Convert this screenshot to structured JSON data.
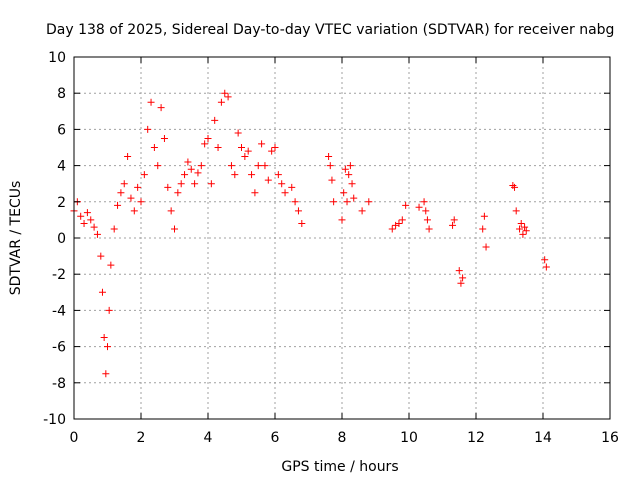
{
  "chart_data": {
    "type": "scatter",
    "title": "Day 138 of 2025, Sidereal Day-to-day VTEC variation (SDTVAR) for receiver nabg",
    "xlabel": "GPS time / hours",
    "ylabel": "SDTVAR / TECUs",
    "xlim": [
      0,
      16
    ],
    "ylim": [
      -10,
      10
    ],
    "x_ticks": [
      0,
      2,
      4,
      6,
      8,
      10,
      12,
      14,
      16
    ],
    "y_ticks": [
      -10,
      -8,
      -6,
      -4,
      -2,
      0,
      2,
      4,
      6,
      8,
      10
    ],
    "x_tick_labels": [
      "0",
      "2",
      "4",
      "6",
      "8",
      "10",
      "12",
      "14",
      "16"
    ],
    "y_tick_labels": [
      "-10",
      "-8",
      "-6",
      "-4",
      "-2",
      "0",
      "2",
      "4",
      "6",
      "8",
      "10"
    ],
    "grid": true,
    "marker": "+",
    "colors": {
      "series": "#ff0000",
      "grid": "#a0a0a0",
      "frame": "#000000"
    },
    "series": [
      {
        "name": "SDTVAR",
        "x": [
          0.0,
          0.1,
          0.2,
          0.3,
          0.4,
          0.5,
          0.6,
          0.7,
          0.8,
          0.85,
          0.9,
          0.95,
          1.0,
          1.05,
          1.1,
          1.2,
          1.3,
          1.4,
          1.5,
          1.6,
          1.7,
          1.8,
          1.9,
          2.0,
          2.1,
          2.2,
          2.3,
          2.4,
          2.5,
          2.6,
          2.7,
          2.8,
          2.9,
          3.0,
          3.1,
          3.2,
          3.3,
          3.4,
          3.5,
          3.6,
          3.7,
          3.8,
          3.9,
          4.0,
          4.1,
          4.2,
          4.3,
          4.4,
          4.5,
          4.6,
          4.7,
          4.8,
          4.9,
          5.0,
          5.1,
          5.2,
          5.3,
          5.4,
          5.5,
          5.6,
          5.7,
          5.8,
          5.9,
          6.0,
          6.1,
          6.2,
          6.3,
          6.5,
          6.6,
          6.7,
          6.8,
          7.6,
          7.65,
          7.7,
          7.75,
          8.0,
          8.05,
          8.1,
          8.15,
          8.2,
          8.25,
          8.3,
          8.35,
          8.6,
          8.8,
          9.5,
          9.6,
          9.7,
          9.8,
          9.9,
          10.3,
          10.45,
          10.5,
          10.55,
          10.6,
          11.3,
          11.35,
          11.5,
          11.55,
          11.6,
          12.2,
          12.25,
          12.3,
          13.1,
          13.15,
          13.2,
          13.3,
          13.35,
          13.4,
          13.45,
          13.5,
          14.05,
          14.1
        ],
        "y": [
          1.5,
          2.0,
          1.2,
          0.8,
          1.4,
          1.0,
          0.6,
          0.2,
          -1.0,
          -3.0,
          -5.5,
          -7.5,
          -6.0,
          -4.0,
          -1.5,
          0.5,
          1.8,
          2.5,
          3.0,
          4.5,
          2.2,
          1.5,
          2.8,
          2.0,
          3.5,
          6.0,
          7.5,
          5.0,
          4.0,
          7.2,
          5.5,
          2.8,
          1.5,
          0.5,
          2.5,
          3.0,
          3.5,
          4.2,
          3.8,
          3.0,
          3.6,
          4.0,
          5.2,
          5.5,
          3.0,
          6.5,
          5.0,
          7.5,
          8.0,
          7.8,
          4.0,
          3.5,
          5.8,
          5.0,
          4.5,
          4.8,
          3.5,
          2.5,
          4.0,
          5.2,
          4.0,
          3.2,
          4.8,
          5.0,
          3.5,
          3.0,
          2.5,
          2.8,
          2.0,
          1.5,
          0.8,
          4.5,
          4.0,
          3.2,
          2.0,
          1.0,
          2.5,
          3.8,
          2.0,
          3.5,
          4.0,
          3.0,
          2.2,
          1.5,
          2.0,
          0.5,
          0.7,
          0.8,
          1.0,
          1.8,
          1.7,
          2.0,
          1.5,
          1.0,
          0.5,
          0.7,
          1.0,
          -1.8,
          -2.5,
          -2.2,
          0.5,
          1.2,
          -0.5,
          2.9,
          2.8,
          1.5,
          0.5,
          0.8,
          0.2,
          0.6,
          0.4,
          -1.2,
          -1.6
        ]
      }
    ]
  }
}
